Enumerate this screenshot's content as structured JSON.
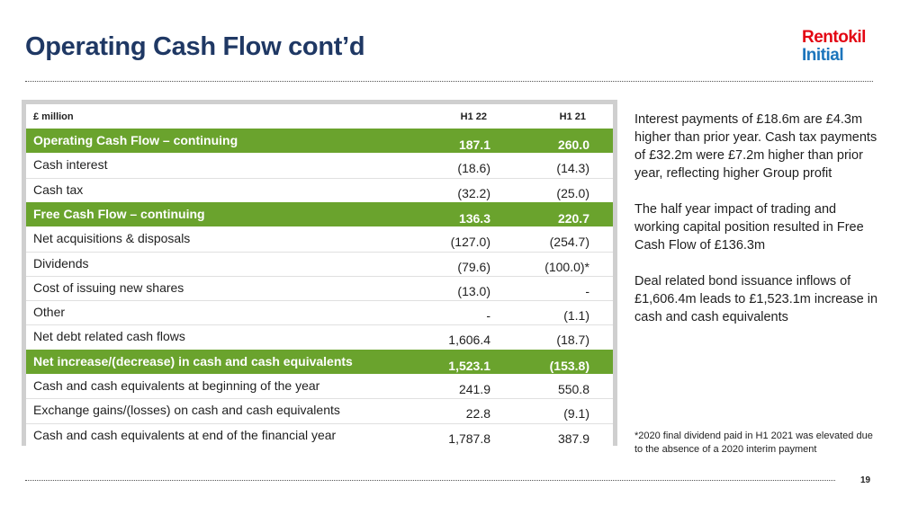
{
  "page": {
    "title": "Operating Cash Flow cont’d",
    "logo_line1": "Rentokil",
    "logo_line2": "Initial",
    "page_number": "19"
  },
  "table": {
    "headers": {
      "label": "£ million",
      "col1": "H1 22",
      "col2": "H1 21"
    },
    "rows": [
      {
        "label": "Operating Cash Flow – continuing",
        "h1_22": "187.1",
        "h1_21": "260.0",
        "highlight": true
      },
      {
        "label": "Cash interest",
        "h1_22": "(18.6)",
        "h1_21": "(14.3)",
        "highlight": false
      },
      {
        "label": "Cash tax",
        "h1_22": "(32.2)",
        "h1_21": "(25.0)",
        "highlight": false
      },
      {
        "label": "Free Cash Flow – continuing",
        "h1_22": "136.3",
        "h1_21": "220.7",
        "highlight": true
      },
      {
        "label": "Net acquisitions & disposals",
        "h1_22": "(127.0)",
        "h1_21": "(254.7)",
        "highlight": false
      },
      {
        "label": "Dividends",
        "h1_22": "(79.6)",
        "h1_21": "(100.0)*",
        "highlight": false
      },
      {
        "label": "Cost of issuing new shares",
        "h1_22": "(13.0)",
        "h1_21": "-",
        "highlight": false
      },
      {
        "label": "Other",
        "h1_22": "-",
        "h1_21": "(1.1)",
        "highlight": false
      },
      {
        "label": "Net debt related cash flows",
        "h1_22": "1,606.4",
        "h1_21": "(18.7)",
        "highlight": false
      },
      {
        "label": "Net increase/(decrease) in cash and cash equivalents",
        "h1_22": "1,523.1",
        "h1_21": "(153.8)",
        "highlight": true
      },
      {
        "label": "Cash and cash equivalents at beginning of the year",
        "h1_22": "241.9",
        "h1_21": "550.8",
        "highlight": false
      },
      {
        "label": "Exchange gains/(losses) on cash and cash equivalents",
        "h1_22": "22.8",
        "h1_21": "(9.1)",
        "highlight": false
      },
      {
        "label": "Cash and cash equivalents at end of the financial year",
        "h1_22": "1,787.8",
        "h1_21": "387.9",
        "highlight": false
      }
    ]
  },
  "notes": [
    "Interest payments of £18.6m are £4.3m higher than prior year.  Cash tax payments of £32.2m were £7.2m higher than prior year, reflecting higher Group profit",
    "The half year impact of trading and working capital position resulted in Free Cash Flow of £136.3m",
    "Deal related bond issuance inflows of £1,606.4m leads to £1,523.1m increase in cash and cash equivalents"
  ],
  "footnote": "*2020 final dividend paid in H1 2021 was elevated due to the absence of a 2020 interim payment",
  "colors": {
    "title": "#1f3864",
    "highlight_row": "#6aa32d",
    "logo_red": "#e30613",
    "logo_blue": "#1c75bc"
  }
}
